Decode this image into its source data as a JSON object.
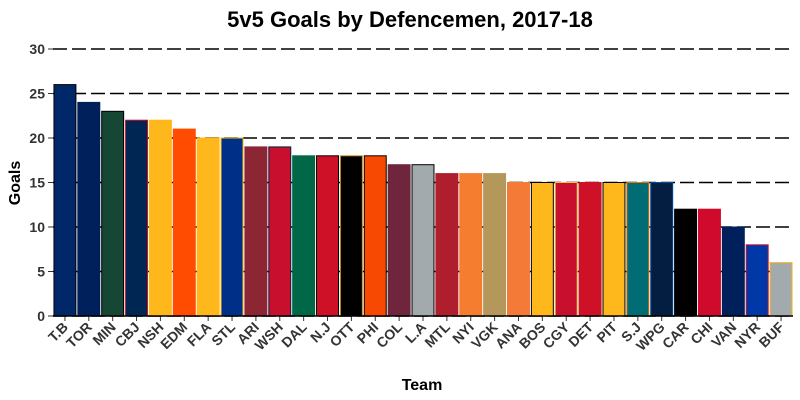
{
  "chart_data": {
    "type": "bar",
    "title": "5v5 Goals by Defencemen, 2017-18",
    "xlabel": "Team",
    "ylabel": "Goals",
    "ylim": [
      0,
      30
    ],
    "yticks": [
      0,
      5,
      10,
      15,
      20,
      25,
      30
    ],
    "grid": "horizontal dashed",
    "categories": [
      "T.B",
      "TOR",
      "MIN",
      "CBJ",
      "NSH",
      "EDM",
      "FLA",
      "STL",
      "ARI",
      "WSH",
      "DAL",
      "N.J",
      "OTT",
      "PHI",
      "COL",
      "L.A",
      "MTL",
      "NYI",
      "VGK",
      "ANA",
      "BOS",
      "CGY",
      "DET",
      "PIT",
      "S.J",
      "WPG",
      "CAR",
      "CHI",
      "VAN",
      "NYR",
      "BUF"
    ],
    "values": [
      26,
      24,
      23,
      22,
      22,
      21,
      20,
      20,
      19,
      19,
      18,
      18,
      18,
      18,
      17,
      17,
      16,
      16,
      16,
      15,
      15,
      15,
      15,
      15,
      15,
      15,
      12,
      12,
      10,
      8,
      6
    ],
    "fill_colors": [
      "#002868",
      "#00205B",
      "#154734",
      "#002654",
      "#FFB81C",
      "#FF4C00",
      "#FFB81C",
      "#002F87",
      "#8C2633",
      "#C8102E",
      "#006847",
      "#CE1126",
      "#000000",
      "#F74902",
      "#6F263D",
      "#A2AAAD",
      "#AF1E2D",
      "#F47D30",
      "#B4975A",
      "#F47A38",
      "#FFB81C",
      "#C8102E",
      "#CE1126",
      "#FFB81C",
      "#006D75",
      "#041E42",
      "#000000",
      "#CF0A2C",
      "#00205B",
      "#0038A8",
      "#A2AAAD"
    ],
    "outline_colors": [
      "#000000",
      "#00205B",
      "#000000",
      "#CE1126",
      "#FFB81C",
      "#FF4C00",
      "#FFB81C",
      "#FCB514",
      "#8C2633",
      "#041E42",
      "#006847",
      "#000000",
      "#C69214",
      "#000000",
      "#6F263D",
      "#000000",
      "#AF1E2D",
      "#F47D30",
      "#B4975A",
      "#F47A38",
      "#000000",
      "#F1BE48",
      "#CE1126",
      "#000000",
      "#EA7200",
      "#004C97",
      "#000000",
      "#CF0A2C",
      "#00205B",
      "#CE1126",
      "#FCB514"
    ]
  }
}
